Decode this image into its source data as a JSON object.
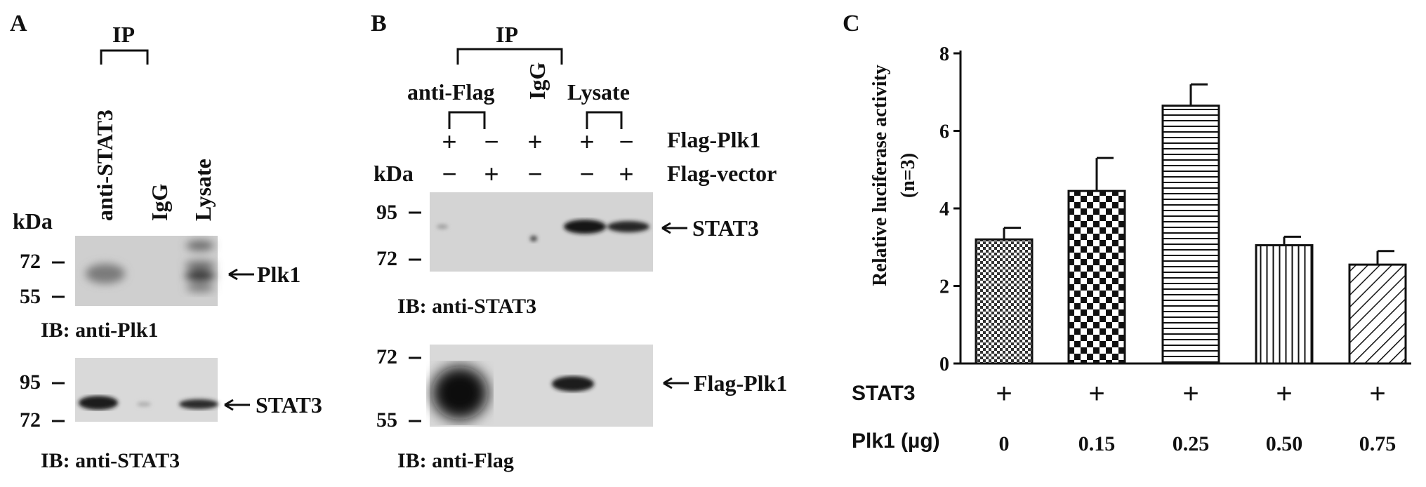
{
  "panel_a": {
    "letter": "A",
    "ip_label": "IP",
    "lanes": [
      "anti-STAT3",
      "IgG",
      "Lysate"
    ],
    "kda": "kDa",
    "blot1_markers": [
      "72",
      "55"
    ],
    "blot1_arrow": "Plk1",
    "blot1_ib": "IB: anti-Plk1",
    "blot2_markers": [
      "95",
      "72"
    ],
    "blot2_arrow": "STAT3",
    "blot2_ib": "IB: anti-STAT3"
  },
  "panel_b": {
    "letter": "B",
    "ip_label": "IP",
    "group_anti_flag": "anti-Flag",
    "group_igg": "IgG",
    "group_lysate": "Lysate",
    "row1_signs": [
      "+",
      "−",
      "+",
      "+",
      "−"
    ],
    "row1_label": "Flag-Plk1",
    "kda": "kDa",
    "row2_signs": [
      "−",
      "+",
      "−",
      "−",
      "+"
    ],
    "row2_label": "Flag-vector",
    "blot1_markers": [
      "95",
      "72"
    ],
    "blot1_arrow": "STAT3",
    "blot1_ib": "IB: anti-STAT3",
    "blot2_markers": [
      "72",
      "55"
    ],
    "blot2_arrow": "Flag-Plk1",
    "blot2_ib": "IB: anti-Flag"
  },
  "panel_c": {
    "letter": "C",
    "row_stat3_label": "STAT3",
    "row_stat3_signs": [
      "+",
      "+",
      "+",
      "+",
      "+"
    ],
    "row_plk1_label": "Plk1 (µg)",
    "row_plk1_values": [
      "0",
      "0.15",
      "0.25",
      "0.50",
      "0.75"
    ]
  },
  "chart_data": {
    "type": "bar",
    "categories": [
      "0",
      "0.15",
      "0.25",
      "0.50",
      "0.75"
    ],
    "values": [
      3.2,
      4.45,
      6.65,
      3.05,
      2.55
    ],
    "errors": [
      0.3,
      0.85,
      0.55,
      0.22,
      0.35
    ],
    "patterns": [
      "fine-checker",
      "checker",
      "horizontal",
      "vertical",
      "diagonal"
    ],
    "ylabel_line1": "Relative luciferase activity",
    "ylabel_line2": "(n=3)",
    "ylim": [
      0,
      8
    ],
    "yticks": [
      "0",
      "2",
      "4",
      "6",
      "8"
    ]
  }
}
